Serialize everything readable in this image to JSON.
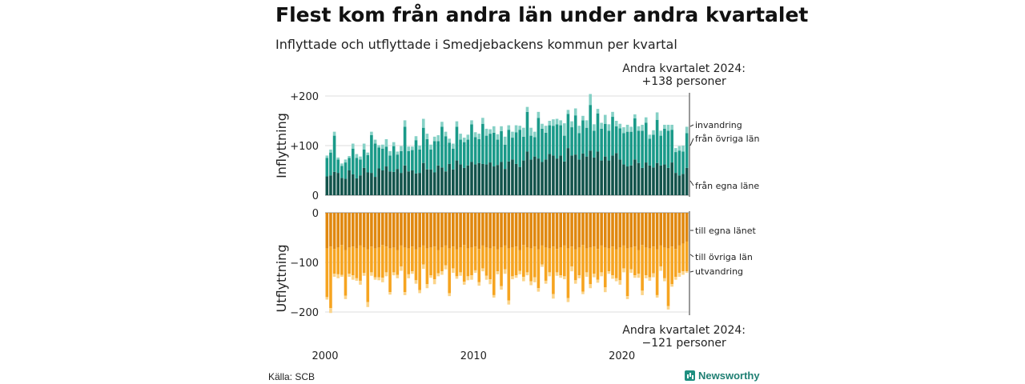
{
  "header": {
    "title": "Flest kom från andra län under andra kvartalet",
    "subtitle": "Inflyttade och utflyttade i Smedjebackens kommun per kvartal"
  },
  "notes": {
    "top_line1": "Andra kvartalet 2024:",
    "top_line2": "+138 personer",
    "bottom_line1": "Andra kvartalet 2024:",
    "bottom_line2": "−121 personer"
  },
  "footer": {
    "source": "Källa: SCB",
    "brand": "Newsworthy"
  },
  "colors": {
    "in_own": "#13544c",
    "in_other": "#1a9a89",
    "in_abroad": "#86d1c6",
    "out_own": "#e0880f",
    "out_other": "#f6a420",
    "out_abroad": "#fbd48a"
  },
  "chart_data": [
    {
      "type": "bar",
      "stacked": true,
      "ylabel": "Inflyttning",
      "ylim": [
        0,
        200
      ],
      "yticks": [
        "0",
        "+100",
        "+200"
      ],
      "xticks": [
        "2000",
        "2010",
        "2020"
      ],
      "x_start": "2000K1",
      "x_end": "2024K2",
      "series": [
        {
          "name": "från egna läne",
          "values": [
            38,
            40,
            47,
            45,
            35,
            33,
            50,
            42,
            34,
            40,
            55,
            46,
            45,
            37,
            54,
            50,
            58,
            48,
            47,
            53,
            45,
            60,
            48,
            50,
            44,
            45,
            65,
            52,
            52,
            46,
            60,
            56,
            48,
            63,
            52,
            70,
            62,
            55,
            60,
            67,
            62,
            65,
            63,
            62,
            66,
            58,
            61,
            67,
            53,
            68,
            72,
            63,
            57,
            70,
            88,
            72,
            78,
            74,
            67,
            72,
            83,
            80,
            74,
            80,
            68,
            95,
            80,
            82,
            72,
            84,
            78,
            90,
            76,
            88,
            70,
            78,
            70,
            80,
            85,
            72,
            62,
            58,
            60,
            72,
            65,
            55,
            66,
            60,
            56,
            65,
            60,
            62,
            55,
            66,
            45,
            40,
            43,
            55
          ]
        },
        {
          "name": "från övriga län",
          "values": [
            37,
            46,
            73,
            27,
            24,
            33,
            25,
            52,
            41,
            32,
            37,
            35,
            76,
            67,
            42,
            44,
            40,
            32,
            52,
            29,
            44,
            78,
            41,
            41,
            67,
            47,
            71,
            61,
            40,
            63,
            49,
            82,
            71,
            43,
            42,
            68,
            50,
            52,
            52,
            76,
            55,
            48,
            81,
            58,
            58,
            68,
            51,
            62,
            49,
            64,
            44,
            64,
            75,
            48,
            80,
            48,
            39,
            82,
            67,
            54,
            58,
            60,
            69,
            61,
            52,
            69,
            57,
            79,
            53,
            67,
            58,
            92,
            54,
            77,
            64,
            66,
            60,
            78,
            54,
            63,
            63,
            70,
            68,
            83,
            65,
            75,
            80,
            54,
            66,
            87,
            60,
            72,
            75,
            66,
            42,
            50,
            45,
            70
          ]
        },
        {
          "name": "invandring",
          "values": [
            5,
            6,
            8,
            4,
            5,
            6,
            4,
            10,
            8,
            6,
            12,
            5,
            7,
            8,
            5,
            8,
            15,
            9,
            8,
            6,
            10,
            13,
            9,
            7,
            8,
            8,
            18,
            11,
            10,
            9,
            12,
            10,
            9,
            8,
            10,
            11,
            12,
            9,
            10,
            8,
            10,
            11,
            12,
            14,
            9,
            13,
            11,
            10,
            16,
            9,
            12,
            14,
            8,
            18,
            10,
            16,
            11,
            12,
            10,
            14,
            9,
            13,
            11,
            10,
            25,
            8,
            12,
            14,
            15,
            9,
            15,
            22,
            13,
            9,
            12,
            18,
            13,
            10,
            11,
            9,
            12,
            14,
            10,
            8,
            9,
            12,
            11,
            8,
            9,
            15,
            10,
            8,
            12,
            10,
            8,
            9,
            12,
            13
          ]
        }
      ]
    },
    {
      "type": "bar",
      "stacked": true,
      "ylabel": "Utflyttning",
      "ylim": [
        -200,
        0
      ],
      "yticks": [
        "0",
        "−100",
        "−200"
      ],
      "xticks": [
        "2000",
        "2010",
        "2020"
      ],
      "x_start": "2000K1",
      "x_end": "2024K2",
      "series": [
        {
          "name": "till egna länet",
          "values": [
            -72,
            -68,
            -73,
            -70,
            -65,
            -75,
            -70,
            -68,
            -72,
            -66,
            -70,
            -74,
            -68,
            -72,
            -70,
            -65,
            -68,
            -72,
            -70,
            -75,
            -66,
            -70,
            -72,
            -68,
            -74,
            -70,
            -66,
            -72,
            -70,
            -68,
            -75,
            -70,
            -66,
            -72,
            -68,
            -74,
            -70,
            -65,
            -72,
            -70,
            -68,
            -73,
            -66,
            -70,
            -72,
            -68,
            -74,
            -70,
            -66,
            -72,
            -70,
            -68,
            -75,
            -65,
            -70,
            -72,
            -68,
            -74,
            -66,
            -70,
            -72,
            -68,
            -73,
            -70,
            -66,
            -72,
            -68,
            -74,
            -70,
            -65,
            -72,
            -70,
            -68,
            -73,
            -66,
            -70,
            -72,
            -68,
            -74,
            -70,
            -66,
            -72,
            -70,
            -68,
            -75,
            -65,
            -70,
            -72,
            -68,
            -74,
            -66,
            -70,
            -72,
            -68,
            -73,
            -66,
            -62,
            -58
          ]
        },
        {
          "name": "till övriga län",
          "values": [
            -98,
            -124,
            -50,
            -54,
            -60,
            -92,
            -53,
            -58,
            -60,
            -71,
            -51,
            -106,
            -52,
            -58,
            -60,
            -66,
            -52,
            -88,
            -50,
            -50,
            -42,
            -90,
            -52,
            -50,
            -62,
            -86,
            -38,
            -72,
            -56,
            -66,
            -47,
            -48,
            -40,
            -90,
            -44,
            -54,
            -50,
            -74,
            -56,
            -56,
            -48,
            -67,
            -46,
            -57,
            -62,
            -98,
            -44,
            -78,
            -48,
            -105,
            -58,
            -58,
            -42,
            -64,
            -50,
            -66,
            -62,
            -78,
            -38,
            -67,
            -48,
            -96,
            -47,
            -56,
            -62,
            -100,
            -40,
            -62,
            -56,
            -94,
            -48,
            -74,
            -55,
            -62,
            -54,
            -80,
            -46,
            -58,
            -58,
            -66,
            -46,
            -96,
            -44,
            -58,
            -48,
            -92,
            -56,
            -58,
            -54,
            -92,
            -42,
            -62,
            -116,
            -76,
            -56,
            -55,
            -56,
            -60
          ]
        },
        {
          "name": "utvandring",
          "values": [
            -5,
            -10,
            -6,
            -8,
            -4,
            -7,
            -6,
            -9,
            -5,
            -8,
            -6,
            -10,
            -7,
            -5,
            -6,
            -9,
            -8,
            -5,
            -6,
            -7,
            -9,
            -6,
            -8,
            -5,
            -7,
            -6,
            -9,
            -8,
            -5,
            -10,
            -6,
            -7,
            -8,
            -6,
            -9,
            -5,
            -7,
            -6,
            -8,
            -9,
            -5,
            -7,
            -6,
            -8,
            -10,
            -5,
            -6,
            -7,
            -9,
            -8,
            -6,
            -5,
            -7,
            -9,
            -6,
            -8,
            -10,
            -7,
            -5,
            -6,
            -8,
            -9,
            -7,
            -5,
            -6,
            -8,
            -10,
            -7,
            -6,
            -5,
            -9,
            -8,
            -7,
            -6,
            -8,
            -10,
            -5,
            -7,
            -6,
            -9,
            -8,
            -6,
            -7,
            -5,
            -8,
            -9,
            -6,
            -7,
            -8,
            -5,
            -9,
            -6,
            -7,
            -5,
            -6,
            -8,
            -7,
            -3
          ]
        }
      ]
    }
  ]
}
